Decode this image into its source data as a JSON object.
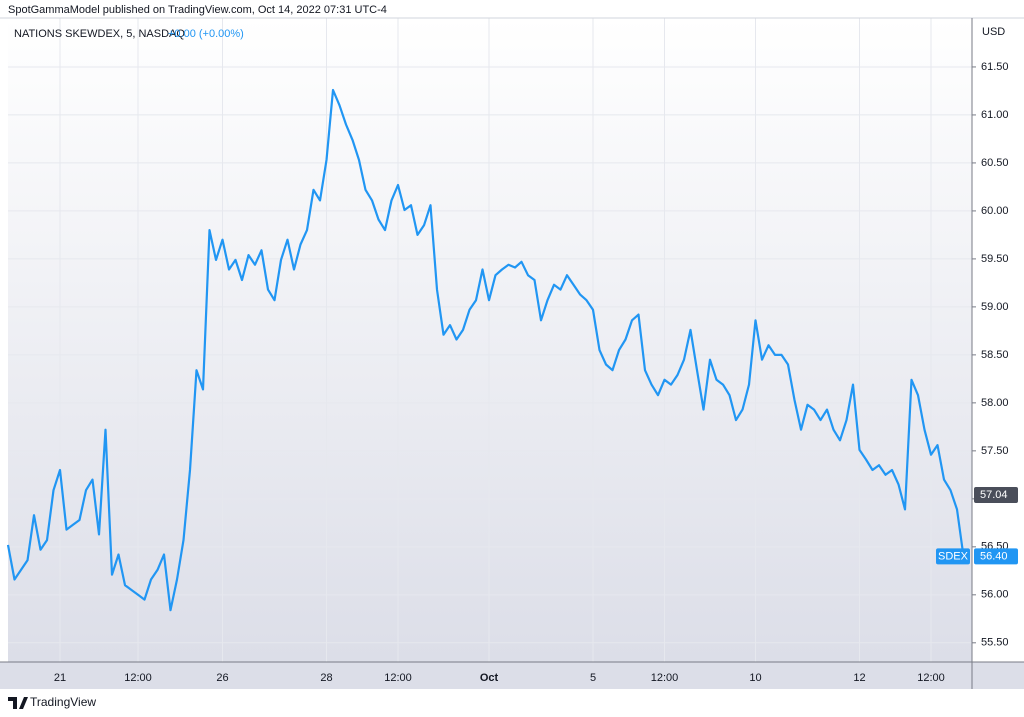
{
  "header": {
    "publisher": "SpotGammaModel published on TradingView.com, Oct 14, 2022 07:31 UTC-4",
    "symbol": "NATIONS SKEWDEX, 5, NASDAQ",
    "change": "+0.00 (+0.00%)",
    "currency": "USD"
  },
  "footer": {
    "brand": "TradingView"
  },
  "chart_data": {
    "type": "line",
    "categories": [
      null,
      null,
      null,
      null,
      null,
      null,
      null,
      null,
      "21",
      null,
      null,
      null,
      null,
      null,
      null,
      null,
      null,
      null,
      null,
      null,
      "12:00",
      null,
      null,
      null,
      null,
      null,
      null,
      null,
      null,
      null,
      null,
      null,
      null,
      "26",
      null,
      null,
      null,
      null,
      null,
      null,
      null,
      null,
      null,
      null,
      null,
      null,
      null,
      null,
      null,
      "28",
      null,
      null,
      null,
      null,
      null,
      null,
      null,
      null,
      null,
      null,
      "12:00",
      null,
      null,
      null,
      null,
      null,
      null,
      null,
      null,
      null,
      null,
      null,
      null,
      null,
      "Oct",
      null,
      null,
      null,
      null,
      null,
      null,
      null,
      null,
      null,
      null,
      null,
      null,
      null,
      null,
      null,
      "5",
      null,
      null,
      null,
      null,
      null,
      null,
      null,
      null,
      null,
      null,
      "12:00",
      null,
      null,
      null,
      null,
      null,
      null,
      null,
      null,
      null,
      null,
      null,
      null,
      null,
      "10",
      null,
      null,
      null,
      null,
      null,
      null,
      null,
      null,
      null,
      null,
      null,
      null,
      null,
      null,
      null,
      "12",
      null,
      null,
      null,
      null,
      null,
      null,
      null,
      null,
      null,
      null,
      "12:00",
      null,
      null,
      null,
      null,
      null
    ],
    "series": [
      {
        "name": "SDEX",
        "color": "#2196f3",
        "values": [
          56.52,
          56.16,
          56.26,
          56.36,
          56.83,
          56.47,
          56.57,
          57.09,
          57.3,
          56.68,
          56.73,
          56.78,
          57.09,
          57.2,
          56.63,
          57.72,
          56.21,
          56.42,
          56.1,
          56.05,
          56.0,
          55.95,
          56.16,
          56.26,
          56.42,
          55.84,
          56.16,
          56.57,
          57.3,
          58.34,
          58.14,
          59.8,
          59.49,
          59.7,
          59.39,
          59.49,
          59.28,
          59.54,
          59.44,
          59.59,
          59.18,
          59.07,
          59.49,
          59.7,
          59.39,
          59.65,
          59.8,
          60.22,
          60.11,
          60.53,
          61.26,
          61.1,
          60.9,
          60.74,
          60.53,
          60.22,
          60.11,
          59.91,
          59.8,
          60.11,
          60.27,
          60.01,
          60.06,
          59.75,
          59.85,
          60.06,
          59.18,
          58.71,
          58.81,
          58.66,
          58.76,
          58.97,
          59.07,
          59.39,
          59.07,
          59.33,
          59.39,
          59.44,
          59.41,
          59.47,
          59.33,
          59.28,
          58.86,
          59.07,
          59.23,
          59.18,
          59.33,
          59.23,
          59.13,
          59.07,
          58.97,
          58.55,
          58.4,
          58.34,
          58.55,
          58.66,
          58.86,
          58.92,
          58.34,
          58.19,
          58.08,
          58.24,
          58.19,
          58.29,
          58.45,
          58.76,
          58.34,
          57.93,
          58.45,
          58.24,
          58.19,
          58.08,
          57.82,
          57.93,
          58.19,
          58.86,
          58.45,
          58.6,
          58.5,
          58.5,
          58.4,
          58.03,
          57.72,
          57.98,
          57.93,
          57.82,
          57.93,
          57.72,
          57.61,
          57.82,
          58.19,
          57.51,
          57.41,
          57.3,
          57.35,
          57.25,
          57.3,
          57.15,
          56.89,
          58.24,
          58.08,
          57.72,
          57.46,
          57.56,
          57.2,
          57.09,
          56.89,
          56.4
        ]
      }
    ],
    "ylim": [
      55.3,
      62.01
    ],
    "yticks": [
      {
        "value": 55.5,
        "label": "55.50"
      },
      {
        "value": 56,
        "label": "56.00"
      },
      {
        "value": 56.5,
        "label": "56.50"
      },
      {
        "value": 57,
        "label": "57.00"
      },
      {
        "value": 57.5,
        "label": "57.50"
      },
      {
        "value": 58,
        "label": "58.00"
      },
      {
        "value": 58.5,
        "label": "58.50"
      },
      {
        "value": 59,
        "label": "59.00"
      },
      {
        "value": 59.5,
        "label": "59.50"
      },
      {
        "value": 60,
        "label": "60.00"
      },
      {
        "value": 60.5,
        "label": "60.50"
      },
      {
        "value": 61,
        "label": "61.00"
      },
      {
        "value": 61.5,
        "label": "61.50"
      }
    ],
    "grid": true,
    "price_markers": [
      {
        "value": 57.04,
        "label": "57.04",
        "color": "#4a4e5a"
      },
      {
        "name": "SDEX",
        "value": 56.4,
        "label": "56.40",
        "color": "#2196f3"
      }
    ]
  }
}
